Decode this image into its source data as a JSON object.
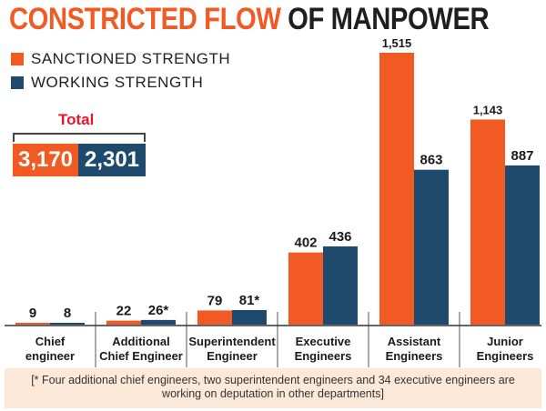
{
  "title": {
    "part1": "CONSTRICTED FLOW",
    "part2": "OF MANPOWER"
  },
  "legend": [
    {
      "label": "SANCTIONED STRENGTH",
      "color": "#f15a22"
    },
    {
      "label": "WORKING STRENGTH",
      "color": "#1e4a6e"
    }
  ],
  "total": {
    "label": "Total",
    "sanctioned": "3,170",
    "working": "2,301"
  },
  "chart_data": {
    "type": "bar",
    "categories": [
      [
        "Chief",
        "engineer"
      ],
      [
        "Additional",
        "Chief Engineer"
      ],
      [
        "Superintendent",
        "Engineer"
      ],
      [
        "Executive",
        "Engineers"
      ],
      [
        "Assistant",
        "Engineers"
      ],
      [
        "Junior",
        "Engineers"
      ]
    ],
    "series": [
      {
        "name": "SANCTIONED STRENGTH",
        "color": "#f15a22",
        "values": [
          9,
          22,
          79,
          402,
          1515,
          1143
        ],
        "labels": [
          "9",
          "22",
          "79",
          "402",
          "1,515",
          "1,143"
        ]
      },
      {
        "name": "WORKING STRENGTH",
        "color": "#1e4a6e",
        "values": [
          8,
          26,
          81,
          436,
          863,
          887
        ],
        "labels": [
          "8",
          "26*",
          "81*",
          "436",
          "863",
          "887"
        ]
      }
    ],
    "ylim": [
      0,
      1515
    ],
    "grid": false,
    "legend_position": "top-left"
  },
  "footnote": "[* Four additional chief engineers, two superintendent engineers and 34 executive engineers are working on deputation in other departments]"
}
